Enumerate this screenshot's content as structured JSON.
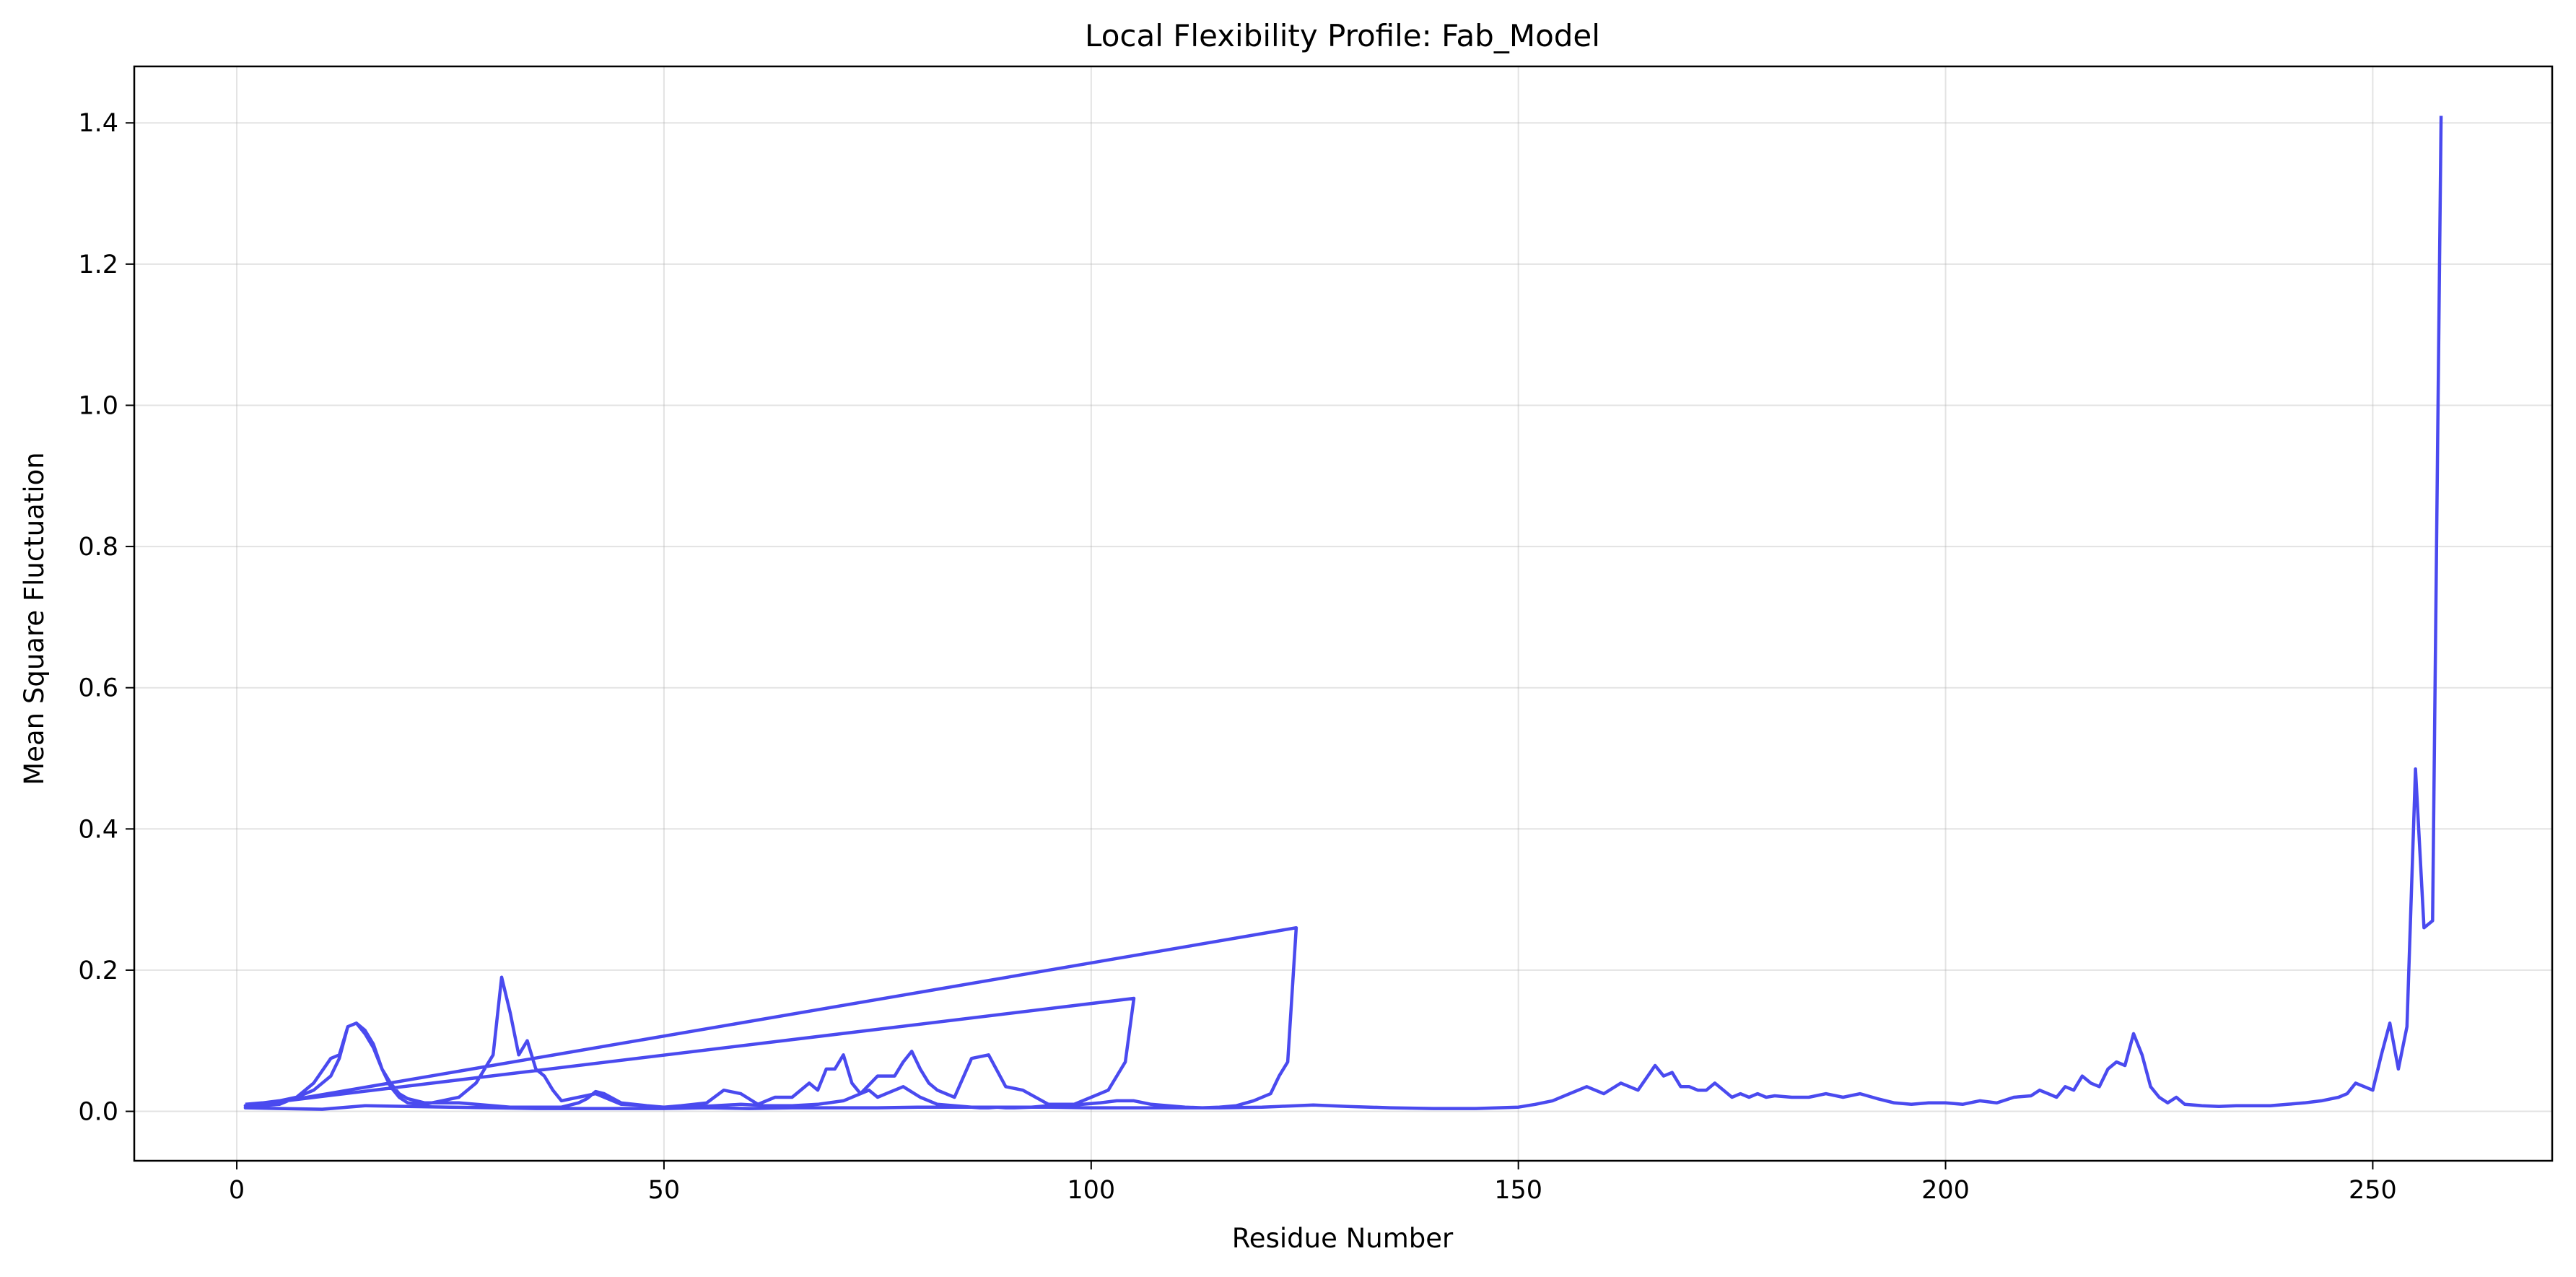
{
  "chart_data": {
    "type": "line",
    "title": "Local Flexibility Profile: Fab_Model",
    "xlabel": "Residue Number",
    "ylabel": "Mean Square Fluctuation",
    "xlim": [
      -12,
      271
    ],
    "ylim": [
      -0.07,
      1.48
    ],
    "xticks": [
      0,
      50,
      100,
      150,
      200,
      250
    ],
    "yticks": [
      0.0,
      0.2,
      0.4,
      0.6,
      0.8,
      1.0,
      1.2,
      1.4
    ],
    "xtick_labels": [
      "0",
      "50",
      "100",
      "150",
      "200",
      "250"
    ],
    "ytick_labels": [
      "0.0",
      "0.2",
      "0.4",
      "0.6",
      "0.8",
      "1.0",
      "1.2",
      "1.4"
    ],
    "grid": true,
    "color": "#4040ee",
    "series": [
      {
        "name": "",
        "x": [
          1,
          3,
          5,
          7,
          9,
          11,
          12,
          13,
          14,
          15,
          16,
          17,
          18,
          19,
          20,
          22,
          24,
          26,
          28,
          30,
          31,
          32,
          33,
          34,
          35,
          36,
          37,
          38,
          40,
          42,
          45,
          48,
          50,
          52,
          55,
          57,
          59,
          61,
          63,
          65,
          67,
          68,
          69,
          70,
          71,
          72,
          73,
          75,
          77,
          78,
          79,
          80,
          81,
          82,
          84,
          86,
          88,
          90,
          92,
          95,
          98,
          100,
          102,
          103,
          104,
          105,
          1,
          3,
          5,
          7,
          9,
          11,
          12,
          13,
          14,
          15,
          16,
          17,
          18,
          19,
          20,
          22,
          24,
          26,
          28,
          30,
          32,
          35,
          38,
          40,
          41,
          42,
          43,
          45,
          48,
          50,
          53,
          56,
          59,
          62,
          65,
          68,
          71,
          73,
          74,
          75,
          76,
          77,
          78,
          80,
          82,
          84,
          86,
          87,
          88,
          89,
          90,
          91,
          93,
          95,
          97,
          99,
          101,
          103,
          105,
          107,
          109,
          111,
          113,
          115,
          117,
          119,
          121,
          122,
          123,
          124,
          1,
          5,
          10,
          15,
          20,
          25,
          30,
          35,
          40,
          45,
          50,
          55,
          60,
          65,
          70,
          75,
          80,
          85,
          90,
          95,
          100,
          105,
          110,
          115,
          120,
          122,
          124,
          126,
          128,
          130,
          135,
          140,
          145,
          150,
          152,
          154,
          156,
          158,
          160,
          162,
          164,
          166,
          167,
          168,
          169,
          170,
          171,
          172,
          173,
          174,
          175,
          176,
          177,
          178,
          179,
          180,
          182,
          184,
          186,
          188,
          190,
          192,
          194,
          196,
          198,
          200,
          202,
          204,
          206,
          208,
          210,
          211,
          212,
          213,
          214,
          215,
          216,
          217,
          218,
          219,
          220,
          221,
          222,
          223,
          224,
          225,
          226,
          227,
          228,
          230,
          232,
          234,
          236,
          238,
          240,
          242,
          244,
          246,
          247,
          248,
          249,
          250,
          251,
          252,
          253,
          254,
          255,
          256,
          257,
          258
        ],
        "y": [
          0.01,
          0.012,
          0.015,
          0.02,
          0.03,
          0.05,
          0.075,
          0.12,
          0.125,
          0.11,
          0.09,
          0.06,
          0.035,
          0.02,
          0.012,
          0.01,
          0.015,
          0.02,
          0.04,
          0.08,
          0.19,
          0.14,
          0.08,
          0.1,
          0.06,
          0.05,
          0.03,
          0.015,
          0.02,
          0.025,
          0.01,
          0.008,
          0.006,
          0.008,
          0.012,
          0.03,
          0.025,
          0.01,
          0.02,
          0.02,
          0.04,
          0.03,
          0.06,
          0.06,
          0.08,
          0.04,
          0.025,
          0.05,
          0.05,
          0.07,
          0.085,
          0.06,
          0.04,
          0.03,
          0.02,
          0.075,
          0.08,
          0.035,
          0.03,
          0.01,
          0.01,
          0.02,
          0.03,
          0.05,
          0.07,
          0.16,
          0.008,
          0.008,
          0.01,
          0.02,
          0.04,
          0.075,
          0.08,
          0.12,
          0.125,
          0.115,
          0.095,
          0.06,
          0.04,
          0.025,
          0.018,
          0.012,
          0.012,
          0.012,
          0.01,
          0.008,
          0.006,
          0.006,
          0.006,
          0.012,
          0.018,
          0.028,
          0.025,
          0.012,
          0.008,
          0.006,
          0.006,
          0.008,
          0.01,
          0.008,
          0.008,
          0.01,
          0.015,
          0.025,
          0.03,
          0.02,
          0.025,
          0.03,
          0.035,
          0.02,
          0.01,
          0.008,
          0.006,
          0.005,
          0.005,
          0.006,
          0.005,
          0.005,
          0.006,
          0.008,
          0.008,
          0.01,
          0.012,
          0.015,
          0.015,
          0.01,
          0.008,
          0.006,
          0.005,
          0.006,
          0.008,
          0.015,
          0.025,
          0.05,
          0.07,
          0.26,
          0.005,
          0.004,
          0.003,
          0.008,
          0.007,
          0.006,
          0.005,
          0.004,
          0.004,
          0.004,
          0.004,
          0.005,
          0.004,
          0.005,
          0.005,
          0.005,
          0.006,
          0.006,
          0.006,
          0.006,
          0.005,
          0.005,
          0.005,
          0.005,
          0.006,
          0.007,
          0.008,
          0.009,
          0.008,
          0.007,
          0.005,
          0.004,
          0.004,
          0.006,
          0.01,
          0.015,
          0.025,
          0.035,
          0.025,
          0.04,
          0.03,
          0.065,
          0.05,
          0.055,
          0.035,
          0.035,
          0.03,
          0.03,
          0.04,
          0.03,
          0.02,
          0.025,
          0.02,
          0.025,
          0.02,
          0.022,
          0.02,
          0.02,
          0.025,
          0.02,
          0.025,
          0.018,
          0.012,
          0.01,
          0.012,
          0.012,
          0.01,
          0.015,
          0.012,
          0.02,
          0.022,
          0.03,
          0.025,
          0.02,
          0.035,
          0.03,
          0.05,
          0.04,
          0.035,
          0.06,
          0.07,
          0.065,
          0.11,
          0.08,
          0.035,
          0.02,
          0.012,
          0.02,
          0.01,
          0.008,
          0.007,
          0.008,
          0.008,
          0.008,
          0.01,
          0.012,
          0.015,
          0.02,
          0.025,
          0.04,
          0.035,
          0.03,
          0.08,
          0.125,
          0.06,
          0.12,
          0.485,
          0.26,
          0.27,
          1.41
        ]
      }
    ]
  }
}
